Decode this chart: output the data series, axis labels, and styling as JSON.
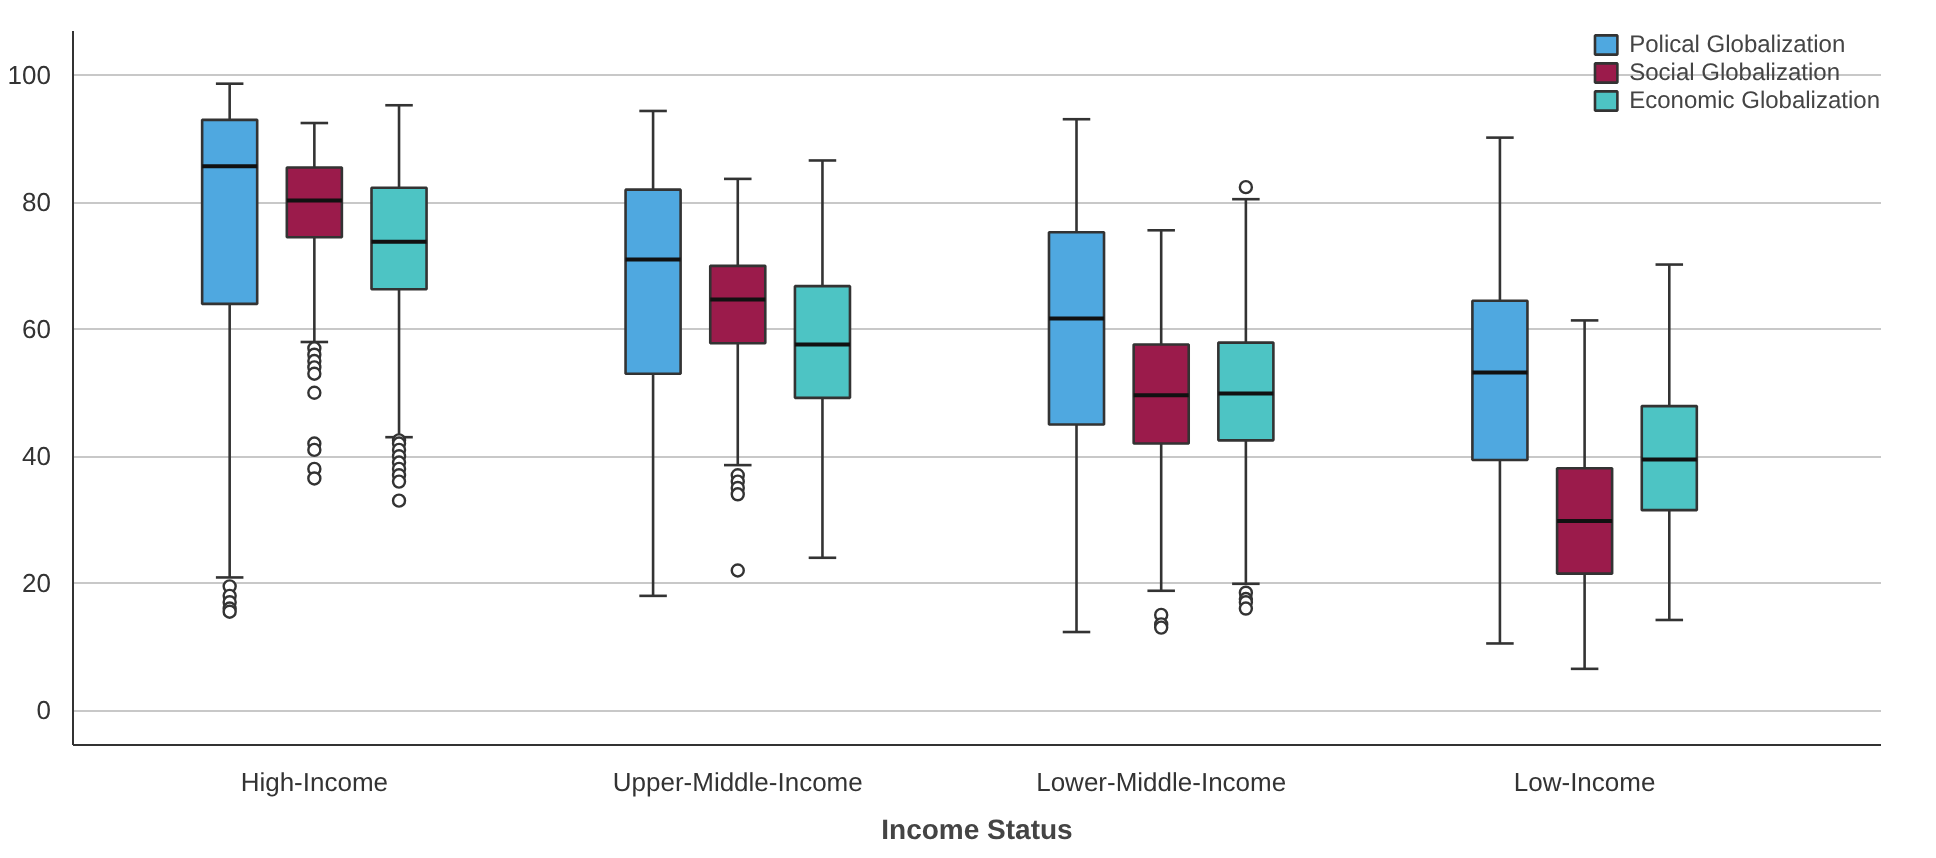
{
  "chart_data": {
    "type": "box",
    "xlabel": "Income Status",
    "categories": [
      "High-Income",
      "Upper-Middle-Income",
      "Lower-Middle-Income",
      "Low-Income"
    ],
    "ylim": [
      -5.5,
      107
    ],
    "yticks": [
      0,
      20,
      40,
      60,
      80,
      100
    ],
    "grid": "y",
    "legend": "top right",
    "series": [
      {
        "name": "Polical Globalization",
        "color": "#4fa8e0",
        "boxes": [
          {
            "low": 20.9,
            "q1": 64,
            "median": 85.7,
            "q3": 93,
            "high": 98.7,
            "outliers": [
              19.5,
              18,
              17,
              16,
              15.5
            ]
          },
          {
            "low": 18,
            "q1": 53,
            "median": 71,
            "q3": 82,
            "high": 94.4
          },
          {
            "low": 12.3,
            "q1": 45,
            "median": 61.7,
            "q3": 75.3,
            "high": 93.1
          },
          {
            "low": 10.5,
            "q1": 39.4,
            "median": 53.2,
            "q3": 64.5,
            "high": 90.2
          }
        ]
      },
      {
        "name": "Social Globalization",
        "color": "#9b1b4b",
        "boxes": [
          {
            "low": 58,
            "q1": 74.5,
            "median": 80.3,
            "q3": 85.5,
            "high": 92.5,
            "outliers": [
              57,
              56,
              55,
              54,
              53,
              50,
              42,
              41,
              38,
              36.5
            ]
          },
          {
            "low": 38.6,
            "q1": 57.8,
            "median": 64.7,
            "q3": 70,
            "high": 83.7,
            "outliers": [
              37,
              36,
              35,
              34,
              22
            ]
          },
          {
            "low": 18.8,
            "q1": 42,
            "median": 49.6,
            "q3": 57.6,
            "high": 75.6,
            "outliers": [
              15,
              13.5,
              13
            ]
          },
          {
            "low": 6.5,
            "q1": 21.5,
            "median": 29.8,
            "q3": 38.1,
            "high": 61.4
          }
        ]
      },
      {
        "name": "Economic Globalization",
        "color": "#4dc4c4",
        "boxes": [
          {
            "low": 43,
            "q1": 66.3,
            "median": 73.8,
            "q3": 82.3,
            "high": 95.3,
            "outliers": [
              42.5,
              42,
              41,
              40,
              39,
              38,
              37,
              36,
              33
            ]
          },
          {
            "low": 24,
            "q1": 49.2,
            "median": 57.6,
            "q3": 66.8,
            "high": 86.6
          },
          {
            "low": 19.9,
            "q1": 42.5,
            "median": 49.9,
            "q3": 57.9,
            "high": 80.5,
            "outliers": [
              82.4,
              18.5,
              17.5,
              17,
              16
            ]
          },
          {
            "low": 14.2,
            "q1": 31.5,
            "median": 39.5,
            "q3": 47.9,
            "high": 70.2
          }
        ]
      }
    ]
  }
}
